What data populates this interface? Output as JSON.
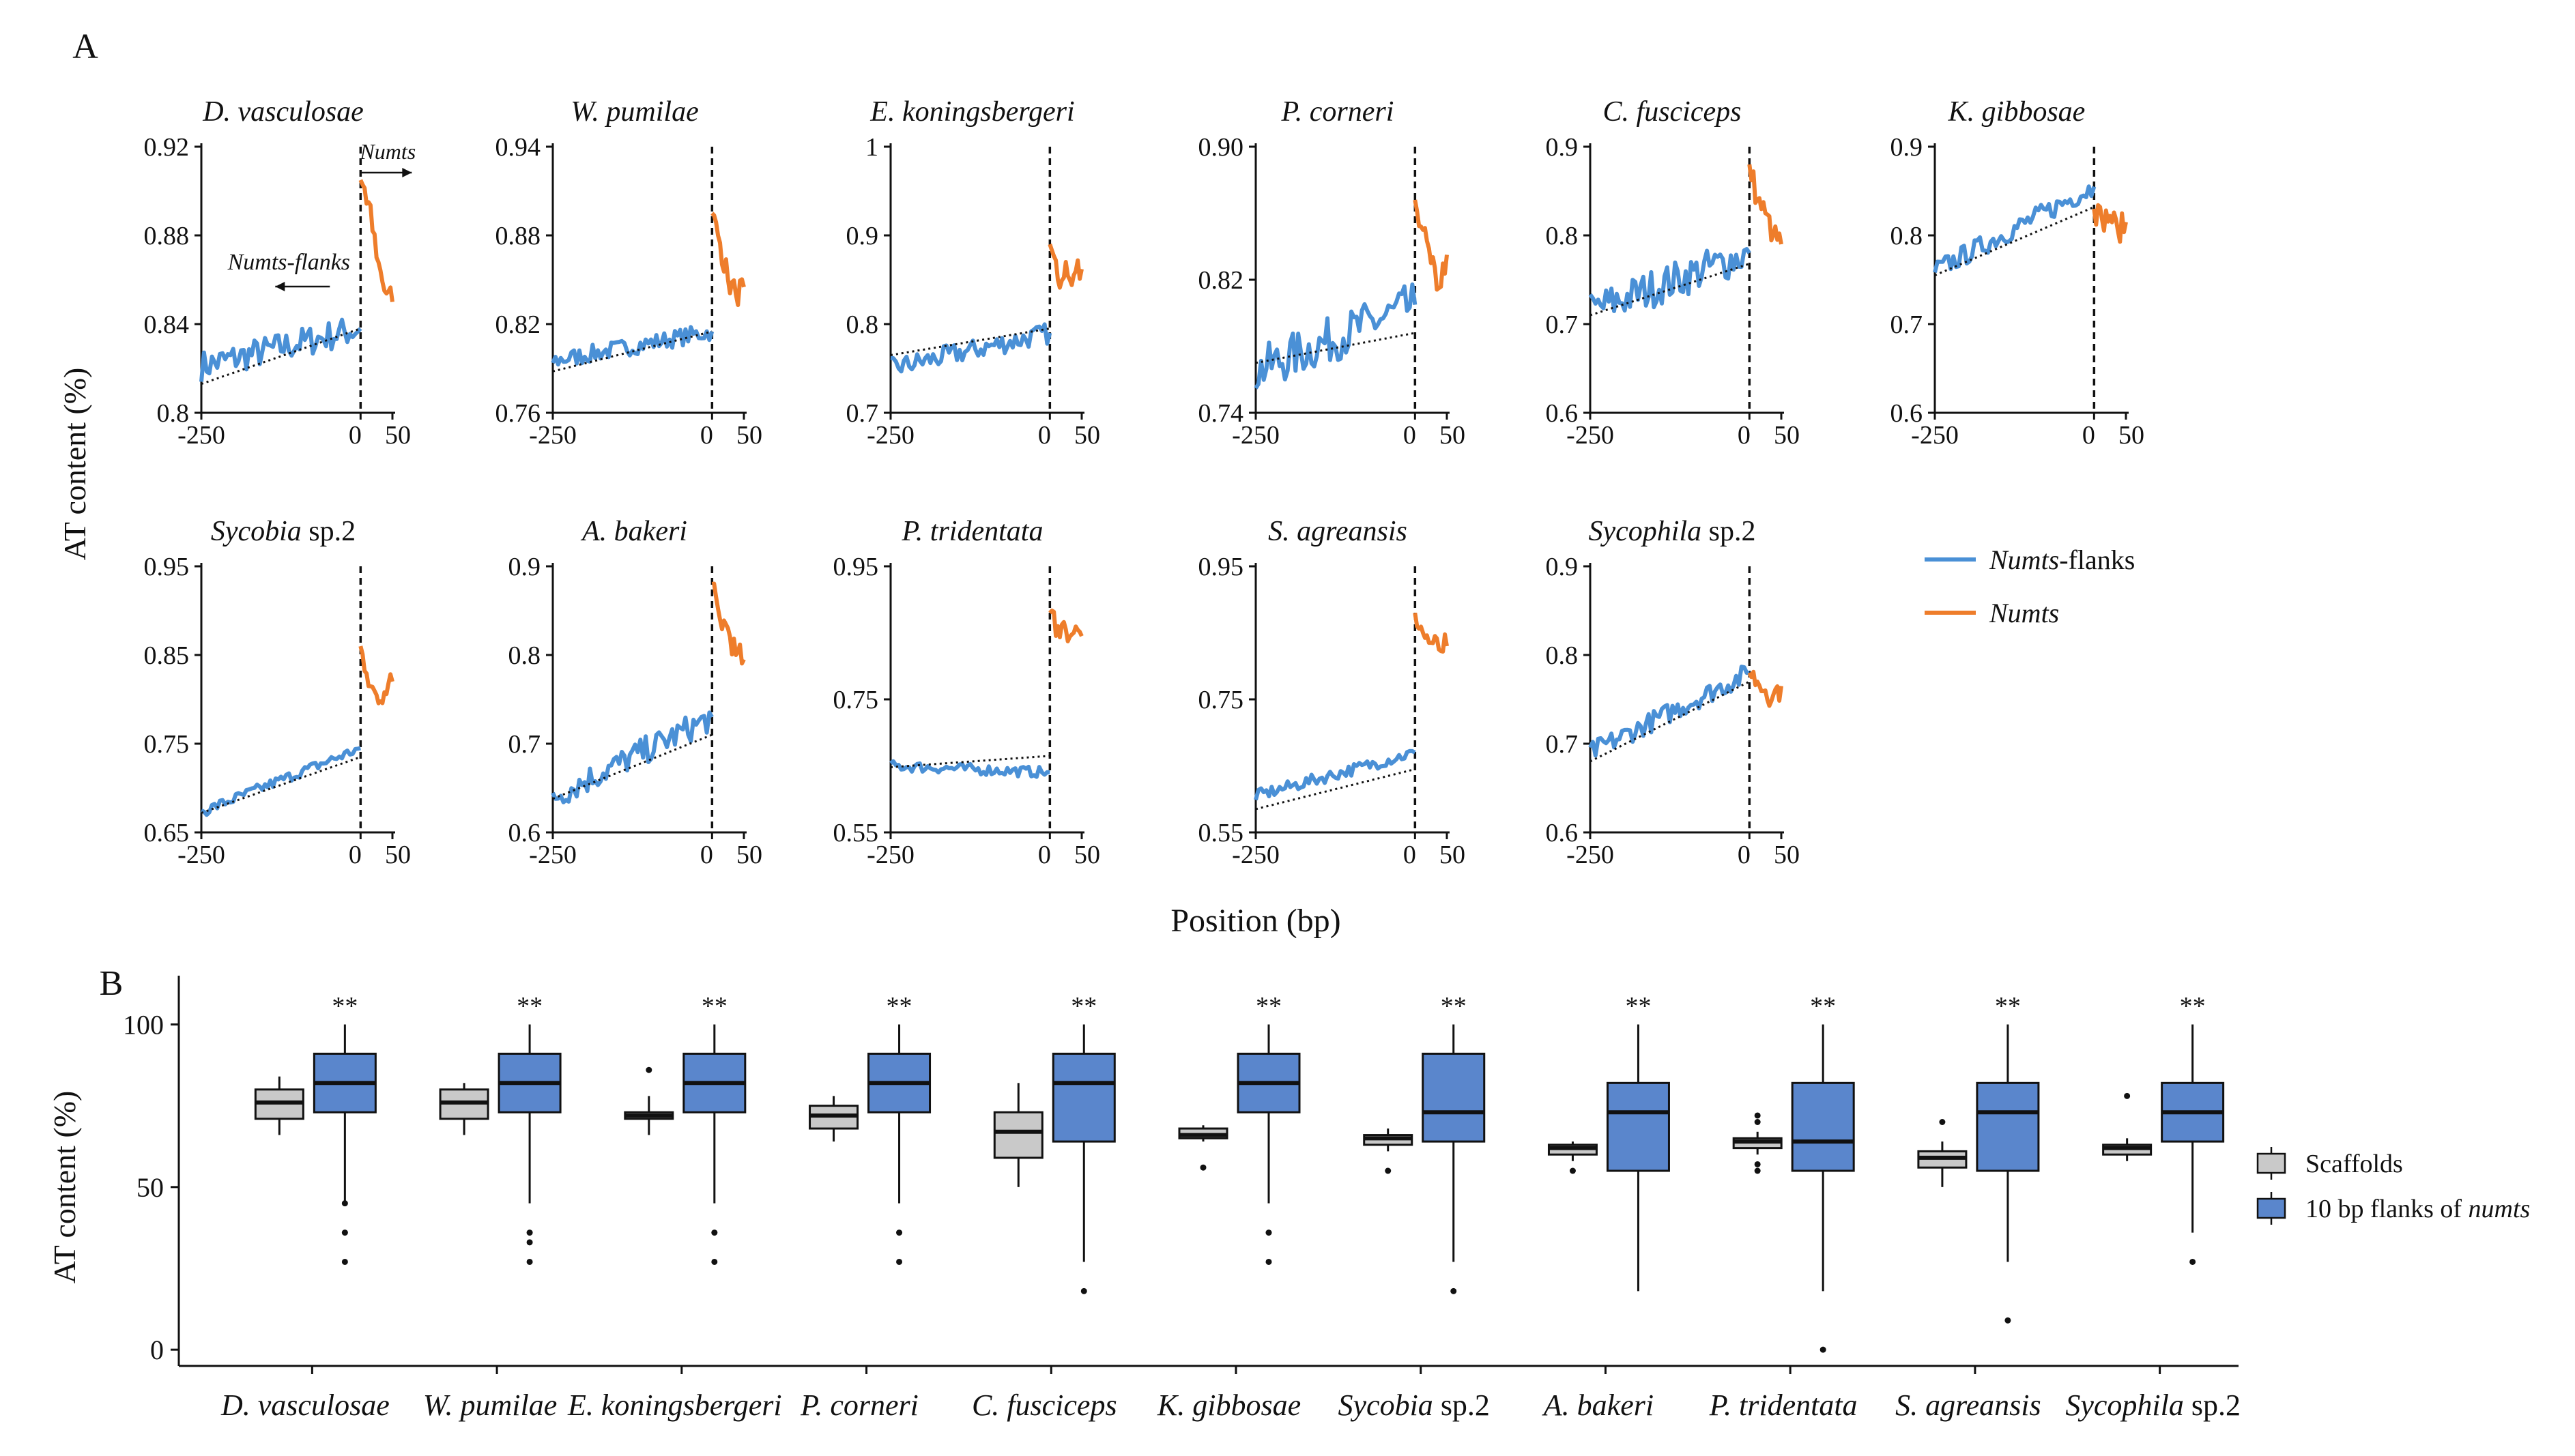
{
  "panel_a_label": "A",
  "panel_b_label": "B",
  "colors": {
    "flank": "#4a90d6",
    "numt": "#ee7d2b",
    "scaffold_box": "#c9c9c9",
    "flank_box": "#5a86cc"
  },
  "chart_data": [
    {
      "type": "line",
      "panel": "A",
      "ylabel": "AT content (%)",
      "xlabel": "Position (bp)",
      "x_ticks": [
        "-250",
        "0",
        "50"
      ],
      "xlim": [
        -250,
        50
      ],
      "legend": {
        "placement": "right",
        "items": [
          {
            "label": "Numts",
            "label_suffix": "-flanks",
            "color": "#4a90d6"
          },
          {
            "label": "Numts",
            "label_suffix": "",
            "color": "#ee7d2b"
          }
        ]
      },
      "annotations": {
        "numts": "Numts",
        "flanks": "Numts-flanks"
      },
      "subplots": [
        {
          "title": "D. vasculosae",
          "title_suffix": "",
          "ylim": [
            0.8,
            0.92
          ],
          "yticks": [
            "0.8",
            "0.84",
            "0.88",
            "0.92"
          ],
          "flank": {
            "start": 0.821,
            "end": 0.838,
            "trend_start": 0.813,
            "trend_end": 0.838,
            "noise": 0.007
          },
          "numts": [
            0.905,
            0.895,
            0.87,
            0.855,
            0.85
          ]
        },
        {
          "title": "W. pumilae",
          "title_suffix": "",
          "ylim": [
            0.76,
            0.94
          ],
          "yticks": [
            "0.76",
            "0.82",
            "0.88",
            "0.94"
          ],
          "flank": {
            "start": 0.795,
            "end": 0.815,
            "trend_start": 0.788,
            "trend_end": 0.815,
            "noise": 0.006
          },
          "numts": [
            0.895,
            0.875,
            0.85,
            0.84,
            0.845
          ]
        },
        {
          "title": "E. koningsbergeri",
          "title_suffix": "",
          "ylim": [
            0.7,
            1.0
          ],
          "yticks": [
            "0.7",
            "0.8",
            "0.9",
            "1"
          ],
          "flank": {
            "start": 0.75,
            "end": 0.79,
            "trend_start": 0.765,
            "trend_end": 0.795,
            "noise": 0.012
          },
          "numts": [
            0.89,
            0.85,
            0.87,
            0.855,
            0.862
          ]
        },
        {
          "title": "P. corneri",
          "title_suffix": "",
          "ylim": [
            0.74,
            0.9
          ],
          "yticks": [
            "0.74",
            "0.82",
            "0.90"
          ],
          "flank": {
            "start": 0.765,
            "end": 0.805,
            "trend_start": 0.77,
            "trend_end": 0.788,
            "noise": 0.014
          },
          "numts": [
            0.868,
            0.85,
            0.83,
            0.815,
            0.835
          ]
        },
        {
          "title": "C. fusciceps",
          "title_suffix": "",
          "ylim": [
            0.6,
            0.9
          ],
          "yticks": [
            "0.6",
            "0.7",
            "0.8",
            "0.9"
          ],
          "flank": {
            "start": 0.715,
            "end": 0.78,
            "trend_start": 0.71,
            "trend_end": 0.768,
            "noise": 0.022
          },
          "numts": [
            0.88,
            0.84,
            0.825,
            0.8,
            0.79
          ]
        },
        {
          "title": "K. gibbosae",
          "title_suffix": "",
          "ylim": [
            0.6,
            0.9
          ],
          "yticks": [
            "0.6",
            "0.7",
            "0.8",
            "0.9"
          ],
          "flank": {
            "start": 0.76,
            "end": 0.855,
            "trend_start": 0.755,
            "trend_end": 0.832,
            "noise": 0.012
          },
          "numts": [
            0.83,
            0.818,
            0.822,
            0.805,
            0.815
          ]
        },
        {
          "title": "Sycobia",
          "title_suffix": " sp.2",
          "ylim": [
            0.65,
            0.95
          ],
          "yticks": [
            "0.65",
            "0.75",
            "0.85",
            "0.95"
          ],
          "flank": {
            "start": 0.673,
            "end": 0.745,
            "trend_start": 0.672,
            "trend_end": 0.735,
            "noise": 0.006
          },
          "numts": [
            0.86,
            0.815,
            0.805,
            0.808,
            0.82
          ]
        },
        {
          "title": "A. bakeri",
          "title_suffix": "",
          "ylim": [
            0.6,
            0.9
          ],
          "yticks": [
            "0.6",
            "0.7",
            "0.8",
            "0.9"
          ],
          "flank": {
            "start": 0.64,
            "end": 0.73,
            "trend_start": 0.638,
            "trend_end": 0.71,
            "noise": 0.016
          },
          "numts": [
            0.88,
            0.84,
            0.83,
            0.8,
            0.795
          ]
        },
        {
          "title": "P. tridentata",
          "title_suffix": "",
          "ylim": [
            0.55,
            0.95
          ],
          "yticks": [
            "0.55",
            "0.75",
            "0.95"
          ],
          "flank": {
            "start": 0.65,
            "end": 0.64,
            "trend_start": 0.648,
            "trend_end": 0.665,
            "noise": 0.008
          },
          "numts": [
            0.88,
            0.86,
            0.855,
            0.85,
            0.845
          ]
        },
        {
          "title": "S. agreansis",
          "title_suffix": "",
          "ylim": [
            0.55,
            0.95
          ],
          "yticks": [
            "0.55",
            "0.75",
            "0.95"
          ],
          "flank": {
            "start": 0.605,
            "end": 0.67,
            "trend_start": 0.585,
            "trend_end": 0.645,
            "noise": 0.009
          },
          "numts": [
            0.88,
            0.85,
            0.835,
            0.825,
            0.83
          ]
        },
        {
          "title": "Sycophila",
          "title_suffix": " sp.2",
          "ylim": [
            0.6,
            0.9
          ],
          "yticks": [
            "0.6",
            "0.7",
            "0.8",
            "0.9"
          ],
          "flank": {
            "start": 0.69,
            "end": 0.78,
            "trend_start": 0.68,
            "trend_end": 0.77,
            "noise": 0.012
          },
          "numts": [
            0.78,
            0.77,
            0.76,
            0.755,
            0.765
          ]
        }
      ]
    },
    {
      "type": "box",
      "panel": "B",
      "ylabel": "AT content (%)",
      "ylim": [
        -5,
        115
      ],
      "yticks": [
        0,
        50,
        100
      ],
      "legend": {
        "placement": "right",
        "items": [
          {
            "label": "Scaffolds",
            "italic_part": ""
          },
          {
            "label": "10 bp flanks of ",
            "italic_part": "numts"
          }
        ]
      },
      "significance": "**",
      "groups": [
        {
          "name": "D. vasculosae",
          "name_suffix": "",
          "scaffolds": {
            "whisker_low": 66,
            "q1": 71,
            "median": 76,
            "q3": 80,
            "whisker_high": 84,
            "outliers": []
          },
          "flanks": {
            "whisker_low": 45,
            "q1": 73,
            "median": 82,
            "q3": 91,
            "whisker_high": 100,
            "outliers": [
              27,
              36,
              45
            ]
          }
        },
        {
          "name": "W. pumilae",
          "name_suffix": "",
          "scaffolds": {
            "whisker_low": 66,
            "q1": 71,
            "median": 76,
            "q3": 80,
            "whisker_high": 82,
            "outliers": []
          },
          "flanks": {
            "whisker_low": 45,
            "q1": 73,
            "median": 82,
            "q3": 91,
            "whisker_high": 100,
            "outliers": [
              27,
              33,
              36
            ]
          }
        },
        {
          "name": "E. koningsbergeri",
          "name_suffix": "",
          "scaffolds": {
            "whisker_low": 66,
            "q1": 71,
            "median": 72,
            "q3": 73,
            "whisker_high": 78,
            "outliers": [
              86
            ]
          },
          "flanks": {
            "whisker_low": 45,
            "q1": 73,
            "median": 82,
            "q3": 91,
            "whisker_high": 100,
            "outliers": [
              27,
              36
            ]
          }
        },
        {
          "name": "P. corneri",
          "name_suffix": "",
          "scaffolds": {
            "whisker_low": 64,
            "q1": 68,
            "median": 72,
            "q3": 75,
            "whisker_high": 78,
            "outliers": []
          },
          "flanks": {
            "whisker_low": 45,
            "q1": 73,
            "median": 82,
            "q3": 91,
            "whisker_high": 100,
            "outliers": [
              27,
              36
            ]
          }
        },
        {
          "name": "C. fusciceps",
          "name_suffix": "",
          "scaffolds": {
            "whisker_low": 50,
            "q1": 59,
            "median": 67,
            "q3": 73,
            "whisker_high": 82,
            "outliers": []
          },
          "flanks": {
            "whisker_low": 27,
            "q1": 64,
            "median": 82,
            "q3": 91,
            "whisker_high": 100,
            "outliers": [
              18
            ]
          }
        },
        {
          "name": "K. gibbosae",
          "name_suffix": "",
          "scaffolds": {
            "whisker_low": 64,
            "q1": 65,
            "median": 66,
            "q3": 68,
            "whisker_high": 69,
            "outliers": [
              56
            ]
          },
          "flanks": {
            "whisker_low": 45,
            "q1": 73,
            "median": 82,
            "q3": 91,
            "whisker_high": 100,
            "outliers": [
              27,
              36
            ]
          }
        },
        {
          "name": "Sycobia",
          "name_suffix": " sp.2",
          "scaffolds": {
            "whisker_low": 61,
            "q1": 63,
            "median": 65,
            "q3": 66,
            "whisker_high": 68,
            "outliers": [
              55
            ]
          },
          "flanks": {
            "whisker_low": 27,
            "q1": 64,
            "median": 73,
            "q3": 91,
            "whisker_high": 100,
            "outliers": [
              18
            ]
          }
        },
        {
          "name": "A. bakeri",
          "name_suffix": "",
          "scaffolds": {
            "whisker_low": 58,
            "q1": 60,
            "median": 62,
            "q3": 63,
            "whisker_high": 64,
            "outliers": [
              55
            ]
          },
          "flanks": {
            "whisker_low": 18,
            "q1": 55,
            "median": 73,
            "q3": 82,
            "whisker_high": 100,
            "outliers": []
          }
        },
        {
          "name": "P. tridentata",
          "name_suffix": "",
          "scaffolds": {
            "whisker_low": 60,
            "q1": 62,
            "median": 64,
            "q3": 65,
            "whisker_high": 67,
            "outliers": [
              55,
              57,
              70,
              72
            ]
          },
          "flanks": {
            "whisker_low": 18,
            "q1": 55,
            "median": 64,
            "q3": 82,
            "whisker_high": 100,
            "outliers": [
              0
            ]
          }
        },
        {
          "name": "S. agreansis",
          "name_suffix": "",
          "scaffolds": {
            "whisker_low": 50,
            "q1": 56,
            "median": 59,
            "q3": 61,
            "whisker_high": 64,
            "outliers": [
              70
            ]
          },
          "flanks": {
            "whisker_low": 27,
            "q1": 55,
            "median": 73,
            "q3": 82,
            "whisker_high": 100,
            "outliers": [
              9
            ]
          }
        },
        {
          "name": "Sycophila",
          "name_suffix": " sp.2",
          "scaffolds": {
            "whisker_low": 58,
            "q1": 60,
            "median": 62,
            "q3": 63,
            "whisker_high": 65,
            "outliers": [
              78
            ]
          },
          "flanks": {
            "whisker_low": 36,
            "q1": 64,
            "median": 73,
            "q3": 82,
            "whisker_high": 100,
            "outliers": [
              27
            ]
          }
        }
      ]
    }
  ]
}
